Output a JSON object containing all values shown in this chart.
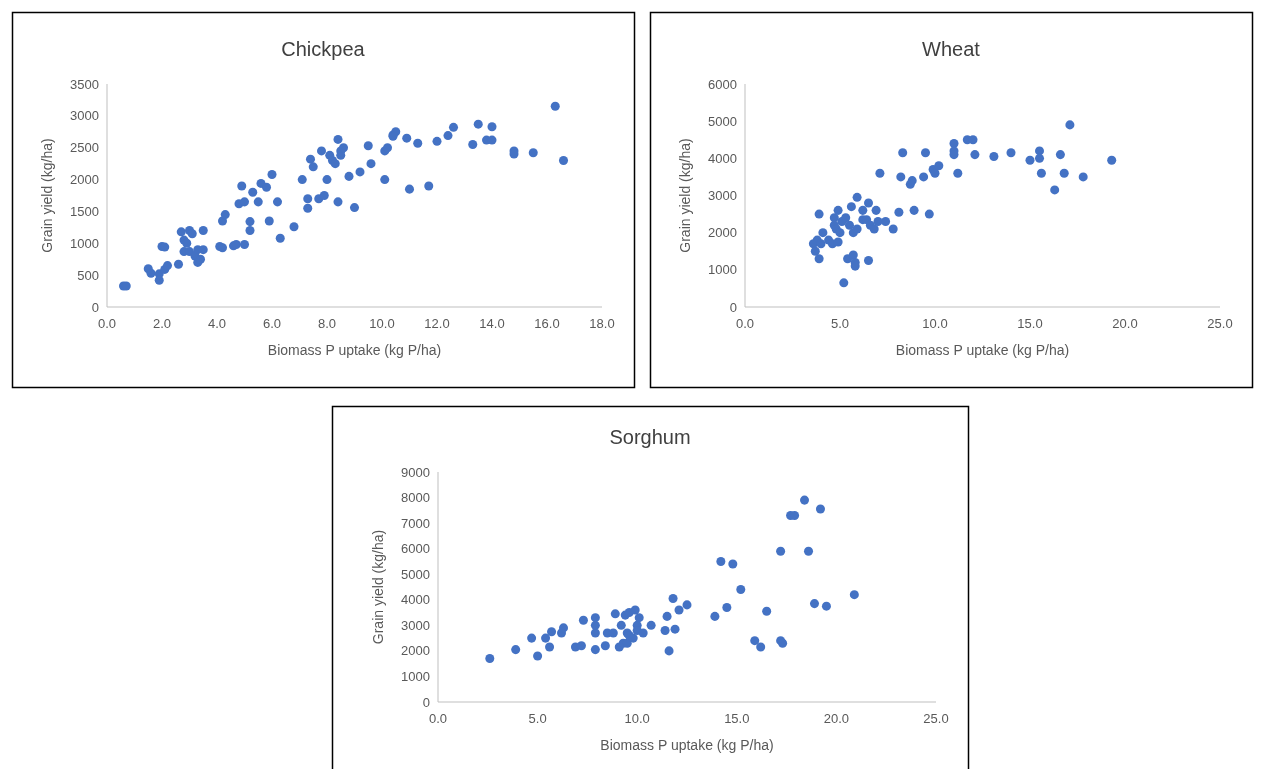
{
  "chart_data": [
    {
      "type": "scatter",
      "title": "Chickpea",
      "xlabel": "Biomass P uptake (kg P/ha)",
      "ylabel": "Grain yield (kg/ha)",
      "xlim": [
        0,
        18
      ],
      "xticks": [
        {
          "value": 0,
          "label": "0.0"
        },
        {
          "value": 2,
          "label": "2.0"
        },
        {
          "value": 4,
          "label": "4.0"
        },
        {
          "value": 6,
          "label": "6.0"
        },
        {
          "value": 8,
          "label": "8.0"
        },
        {
          "value": 10,
          "label": "10.0"
        },
        {
          "value": 12,
          "label": "12.0"
        },
        {
          "value": 14,
          "label": "14.0"
        },
        {
          "value": 16,
          "label": "16.0"
        },
        {
          "value": 18,
          "label": "18.0"
        }
      ],
      "ylim": [
        0,
        3500
      ],
      "yticks": [
        0,
        500,
        1000,
        1500,
        2000,
        2500,
        3000,
        3500
      ],
      "grid": false,
      "marker": "circle",
      "series": [
        {
          "color": "#4472c4",
          "x": [
            0.6,
            0.7,
            1.5,
            1.6,
            1.9,
            1.9,
            2.0,
            2.1,
            2.1,
            2.2,
            2.6,
            2.7,
            2.8,
            2.8,
            2.9,
            3.0,
            3.0,
            3.1,
            3.2,
            3.3,
            3.3,
            3.4,
            3.5,
            3.5,
            4.1,
            4.2,
            4.2,
            4.3,
            4.6,
            4.7,
            4.8,
            5.0,
            4.9,
            5.0,
            5.2,
            5.2,
            5.3,
            5.6,
            5.5,
            5.8,
            5.9,
            6.0,
            6.2,
            6.3,
            6.8,
            7.1,
            7.3,
            7.3,
            7.4,
            7.5,
            7.7,
            7.8,
            7.9,
            8.0,
            8.1,
            8.2,
            8.3,
            8.4,
            8.5,
            8.5,
            8.6,
            8.4,
            8.8,
            9.0,
            9.2,
            9.6,
            9.5,
            10.1,
            10.1,
            10.2,
            10.4,
            10.5,
            10.4,
            10.9,
            11.0,
            11.3,
            11.7,
            12.0,
            12.4,
            12.6,
            13.3,
            13.5,
            13.8,
            14.0,
            14.0,
            14.8,
            14.8,
            15.5,
            16.3,
            16.6
          ],
          "values": [
            330,
            330,
            600,
            530,
            520,
            420,
            950,
            940,
            590,
            650,
            670,
            1180,
            870,
            1050,
            1000,
            1200,
            870,
            1150,
            800,
            700,
            900,
            750,
            1200,
            900,
            950,
            930,
            1350,
            1450,
            960,
            980,
            1620,
            1650,
            1900,
            980,
            1200,
            1340,
            1800,
            1940,
            1650,
            1880,
            1350,
            2080,
            1650,
            1080,
            1260,
            2000,
            1550,
            1700,
            2320,
            2200,
            1700,
            2450,
            1750,
            2000,
            2380,
            2300,
            2250,
            2630,
            2450,
            2380,
            2500,
            1650,
            2050,
            1560,
            2120,
            2250,
            2530,
            2000,
            2450,
            2500,
            2700,
            2750,
            2680,
            2650,
            1850,
            2570,
            1900,
            2600,
            2690,
            2820,
            2550,
            2870,
            2620,
            2620,
            2830,
            2450,
            2400,
            2420,
            3150,
            2300
          ]
        }
      ]
    },
    {
      "type": "scatter",
      "title": "Wheat",
      "xlabel": "Biomass P uptake (kg P/ha)",
      "ylabel": "Grain yield (kg/ha)",
      "xlim": [
        0,
        25
      ],
      "xticks": [
        {
          "value": 0,
          "label": "0.0"
        },
        {
          "value": 5,
          "label": "5.0"
        },
        {
          "value": 10,
          "label": "10.0"
        },
        {
          "value": 15,
          "label": "15.0"
        },
        {
          "value": 20,
          "label": "20.0"
        },
        {
          "value": 25,
          "label": "25.0"
        }
      ],
      "ylim": [
        0,
        6000
      ],
      "yticks": [
        0,
        1000,
        2000,
        3000,
        4000,
        5000,
        6000
      ],
      "grid": false,
      "marker": "circle",
      "series": [
        {
          "color": "#4472c4",
          "x": [
            3.6,
            3.7,
            3.8,
            3.9,
            3.9,
            4.0,
            4.1,
            4.4,
            4.6,
            4.7,
            4.7,
            4.9,
            4.8,
            4.9,
            5.1,
            5.0,
            5.2,
            5.3,
            5.4,
            5.6,
            5.5,
            5.7,
            5.7,
            5.8,
            5.8,
            5.9,
            5.9,
            6.2,
            6.2,
            6.5,
            6.4,
            6.5,
            6.6,
            6.8,
            6.9,
            7.0,
            7.1,
            7.4,
            7.8,
            8.1,
            8.2,
            8.3,
            8.7,
            8.8,
            8.9,
            9.4,
            9.5,
            9.7,
            9.9,
            10.0,
            10.2,
            11.0,
            11.0,
            11.0,
            11.2,
            11.7,
            12.0,
            12.1,
            13.1,
            14.0,
            15.0,
            15.5,
            15.5,
            15.6,
            16.3,
            16.6,
            16.8,
            17.1,
            17.8,
            19.3
          ],
          "values": [
            1700,
            1500,
            1800,
            2500,
            1300,
            1700,
            2000,
            1800,
            1700,
            2400,
            2200,
            2600,
            2100,
            1750,
            2300,
            2000,
            650,
            2400,
            1300,
            2700,
            2200,
            2000,
            1400,
            1200,
            1100,
            2950,
            2100,
            2600,
            2350,
            2800,
            2350,
            1250,
            2200,
            2100,
            2600,
            2300,
            3600,
            2300,
            2100,
            2550,
            3500,
            4150,
            3300,
            3400,
            2600,
            3500,
            4150,
            2500,
            3700,
            3600,
            3800,
            4400,
            4200,
            4100,
            3600,
            4500,
            4500,
            4100,
            4050,
            4150,
            3950,
            4200,
            4000,
            3600,
            3150,
            4100,
            3600,
            4900,
            3500,
            3950
          ]
        }
      ]
    },
    {
      "type": "scatter",
      "title": "Sorghum",
      "xlabel": "Biomass P uptake (kg P/ha)",
      "ylabel": "Grain yield (kg/ha)",
      "xlim": [
        0,
        25
      ],
      "xticks": [
        {
          "value": 0,
          "label": "0.0"
        },
        {
          "value": 5,
          "label": "5.0"
        },
        {
          "value": 10,
          "label": "10.0"
        },
        {
          "value": 15,
          "label": "15.0"
        },
        {
          "value": 20,
          "label": "20.0"
        },
        {
          "value": 25,
          "label": "25.0"
        }
      ],
      "ylim": [
        0,
        9000
      ],
      "yticks": [
        0,
        1000,
        2000,
        3000,
        4000,
        5000,
        6000,
        7000,
        8000,
        9000
      ],
      "grid": false,
      "marker": "circle",
      "series": [
        {
          "color": "#4472c4",
          "x": [
            2.6,
            3.9,
            4.7,
            5.0,
            5.4,
            5.6,
            5.7,
            6.2,
            6.3,
            6.9,
            7.2,
            7.3,
            7.9,
            7.9,
            7.9,
            7.9,
            8.4,
            8.5,
            8.8,
            8.9,
            9.1,
            9.2,
            9.3,
            9.5,
            9.5,
            9.4,
            9.6,
            9.6,
            9.8,
            9.9,
            10.0,
            10.0,
            10.1,
            10.3,
            10.7,
            11.4,
            11.5,
            11.6,
            11.8,
            11.9,
            12.1,
            12.5,
            13.9,
            14.2,
            14.5,
            14.8,
            15.2,
            15.9,
            16.2,
            16.5,
            17.2,
            17.2,
            17.3,
            17.7,
            17.9,
            18.4,
            18.6,
            18.9,
            19.2,
            19.5,
            20.9
          ],
          "values": [
            1700,
            2050,
            2500,
            1800,
            2500,
            2150,
            2750,
            2700,
            2900,
            2150,
            2200,
            3200,
            2050,
            2700,
            3000,
            3300,
            2200,
            2700,
            2700,
            3450,
            2150,
            3000,
            2300,
            2300,
            2700,
            3400,
            2600,
            3500,
            2500,
            3600,
            3000,
            2800,
            3300,
            2700,
            3000,
            2800,
            3350,
            2000,
            4050,
            2850,
            3600,
            3800,
            3350,
            5500,
            3700,
            5400,
            4400,
            2400,
            2150,
            3550,
            5900,
            2400,
            2300,
            7300,
            7300,
            7900,
            5900,
            3850,
            7550,
            3750,
            4200
          ]
        }
      ]
    }
  ]
}
